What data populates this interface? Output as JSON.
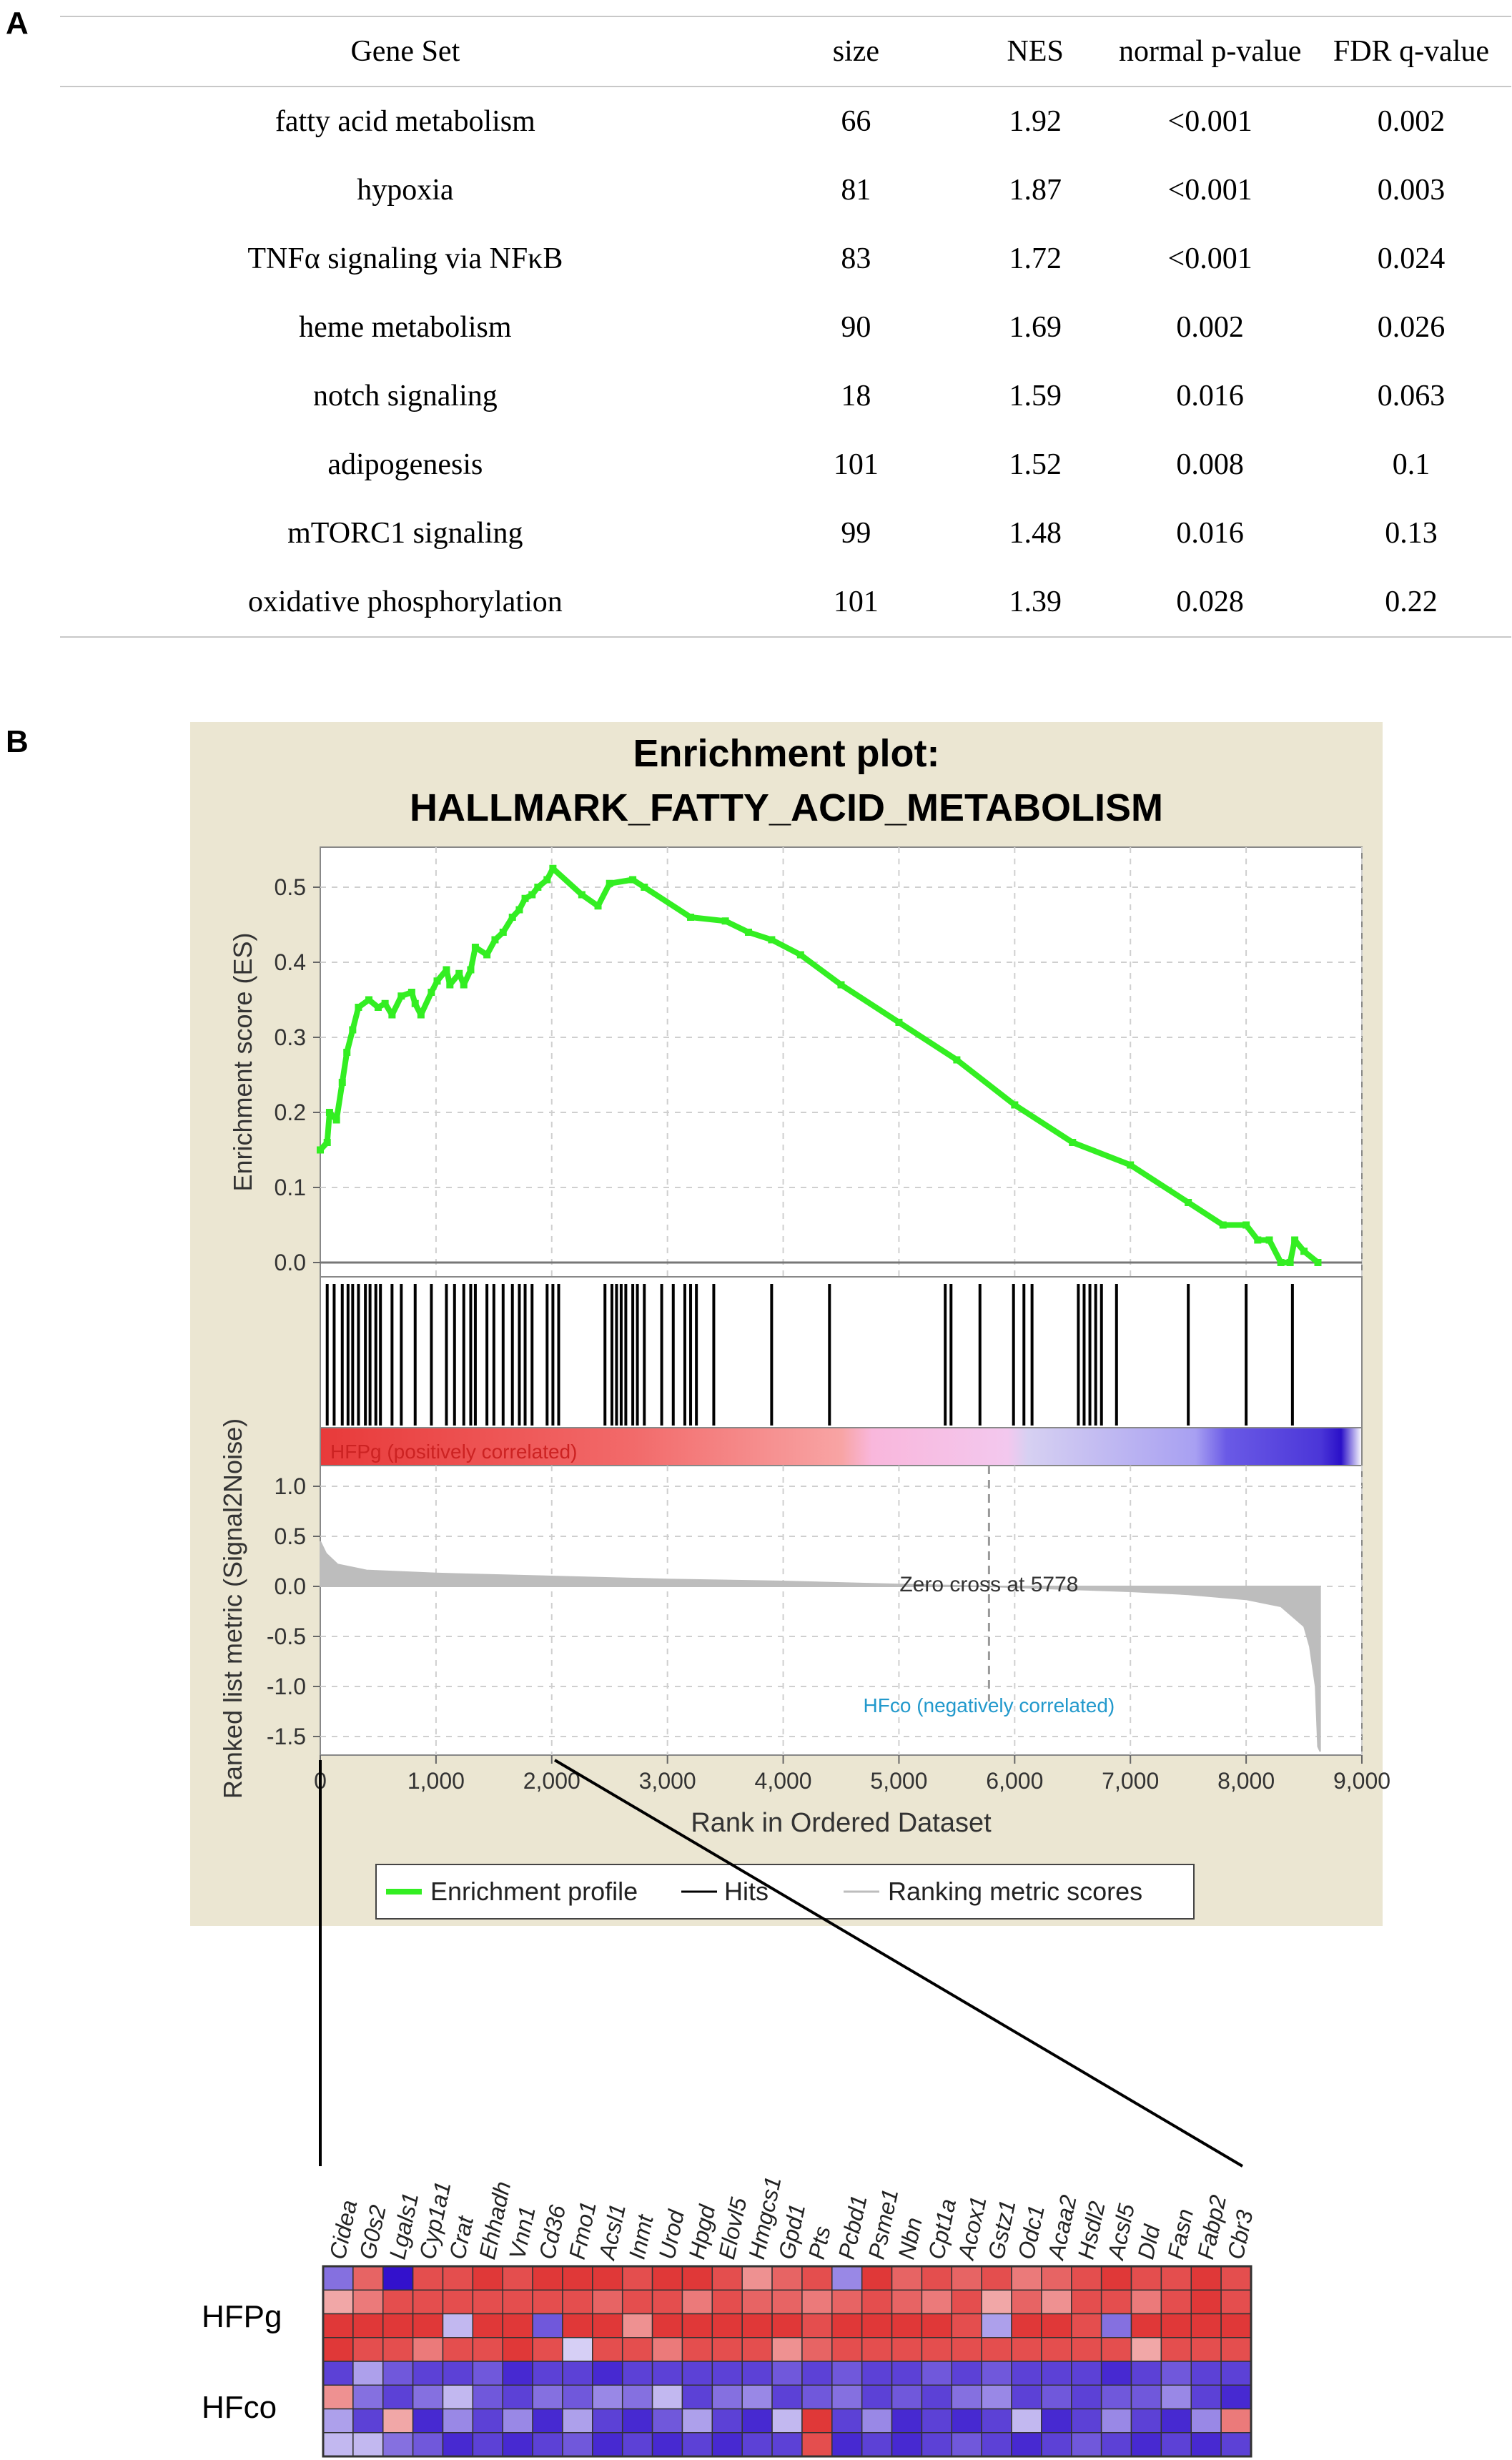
{
  "panel_a": {
    "letter": "A",
    "columns": [
      "Gene Set",
      "size",
      "NES",
      "normal p-value",
      "FDR q-value"
    ],
    "rows": [
      [
        "fatty acid metabolism",
        "66",
        "1.92",
        "<0.001",
        "0.002"
      ],
      [
        "hypoxia",
        "81",
        "1.87",
        "<0.001",
        "0.003"
      ],
      [
        "TNFα signaling via NFκB",
        "83",
        "1.72",
        "<0.001",
        "0.024"
      ],
      [
        "heme metabolism",
        "90",
        "1.69",
        "0.002",
        "0.026"
      ],
      [
        "notch signaling",
        "18",
        "1.59",
        "0.016",
        "0.063"
      ],
      [
        "adipogenesis",
        "101",
        "1.52",
        "0.008",
        "0.1"
      ],
      [
        "mTORC1 signaling",
        "99",
        "1.48",
        "0.016",
        "0.13"
      ],
      [
        "oxidative phosphorylation",
        "101",
        "1.39",
        "0.028",
        "0.22"
      ]
    ]
  },
  "panel_b": {
    "letter": "B",
    "title_line1": "Enrichment plot:",
    "title_line2": "HALLMARK_FATTY_ACID_METABOLISM",
    "colors": {
      "background": "#ebe6d2",
      "es_line": "#33ee22",
      "hits": "#000000",
      "ranking": "#bdbdbd",
      "pos_label": "#cc2222",
      "neg_label": "#2299cc",
      "heat_red": "#dd2222",
      "heat_blue": "#3311cc"
    },
    "pos_label": "HFPg (positively correlated)",
    "neg_label": "HFco (negatively correlated)",
    "zero_cross_label": "Zero cross at 5778",
    "zero_cross_rank": 5778,
    "legend": [
      "Enrichment profile",
      "Hits",
      "Ranking metric scores"
    ]
  },
  "chart_data": [
    {
      "type": "line",
      "title": "Enrichment plot: HALLMARK_FATTY_ACID_METABOLISM",
      "xlabel": "Rank in Ordered Dataset",
      "ylabel": "Enrichment score (ES)",
      "xlim": [
        0,
        9000
      ],
      "ylim": [
        0,
        0.56
      ],
      "xticks": [
        "0",
        "1,000",
        "2,000",
        "3,000",
        "4,000",
        "5,000",
        "6,000",
        "7,000",
        "8,000",
        "9,000"
      ],
      "yticks": [
        "0.0",
        "0.1",
        "0.2",
        "0.3",
        "0.4",
        "0.5"
      ],
      "grid": true,
      "series": [
        {
          "name": "Enrichment profile",
          "x": [
            0,
            60,
            80,
            140,
            190,
            230,
            280,
            330,
            420,
            500,
            560,
            620,
            700,
            790,
            820,
            870,
            960,
            1010,
            1090,
            1120,
            1200,
            1240,
            1300,
            1340,
            1440,
            1510,
            1580,
            1660,
            1720,
            1770,
            1830,
            1880,
            1960,
            2010,
            2260,
            2400,
            2500,
            2700,
            2800,
            3200,
            3500,
            3700,
            3900,
            4150,
            4500,
            5000,
            5500,
            6000,
            6500,
            7000,
            7500,
            7800,
            8000,
            8100,
            8200,
            8300,
            8380,
            8420,
            8500,
            8620
          ],
          "y": [
            0.15,
            0.16,
            0.2,
            0.19,
            0.24,
            0.28,
            0.31,
            0.34,
            0.35,
            0.34,
            0.345,
            0.33,
            0.355,
            0.36,
            0.345,
            0.33,
            0.36,
            0.375,
            0.39,
            0.37,
            0.385,
            0.37,
            0.39,
            0.42,
            0.41,
            0.43,
            0.44,
            0.46,
            0.47,
            0.485,
            0.49,
            0.5,
            0.51,
            0.525,
            0.49,
            0.475,
            0.505,
            0.51,
            0.5,
            0.46,
            0.455,
            0.44,
            0.43,
            0.41,
            0.37,
            0.32,
            0.27,
            0.21,
            0.16,
            0.13,
            0.08,
            0.05,
            0.05,
            0.03,
            0.03,
            0.0,
            0.0,
            0.03,
            0.015,
            0.0
          ]
        }
      ]
    },
    {
      "type": "bar",
      "name": "Hits",
      "x": [
        60,
        120,
        190,
        240,
        280,
        330,
        390,
        430,
        480,
        520,
        620,
        700,
        820,
        960,
        1090,
        1160,
        1240,
        1300,
        1340,
        1440,
        1500,
        1580,
        1660,
        1720,
        1770,
        1830,
        1960,
        2010,
        2060,
        2460,
        2520,
        2560,
        2600,
        2640,
        2700,
        2740,
        2800,
        2950,
        3050,
        3150,
        3200,
        3250,
        3400,
        3900,
        4400,
        5400,
        5450,
        5700,
        5990,
        6080,
        6150,
        6550,
        6600,
        6650,
        6700,
        6750,
        6880,
        7500,
        8000,
        8400
      ]
    },
    {
      "type": "area",
      "xlabel": "Rank in Ordered Dataset",
      "ylabel": "Ranked list metric (Signal2Noise)",
      "xlim": [
        0,
        9000
      ],
      "ylim": [
        -1.75,
        1.0
      ],
      "yticks": [
        "1.0",
        "0.5",
        "0.0",
        "-0.5",
        "-1.0",
        "-1.5"
      ],
      "grid": true,
      "series": [
        {
          "name": "Ranking metric scores",
          "x": [
            0,
            50,
            150,
            400,
            1000,
            2000,
            3000,
            4000,
            5000,
            5778,
            6500,
            7000,
            7500,
            8000,
            8300,
            8500,
            8550,
            8600,
            8620,
            8640
          ],
          "y": [
            0.45,
            0.33,
            0.22,
            0.16,
            0.13,
            0.1,
            0.07,
            0.05,
            0.02,
            0.0,
            -0.03,
            -0.05,
            -0.08,
            -0.13,
            -0.2,
            -0.4,
            -0.6,
            -1.0,
            -1.6,
            -1.65
          ]
        }
      ]
    },
    {
      "type": "heatmap",
      "groups": [
        "HFPg",
        "HFco"
      ],
      "genes": [
        "Cidea",
        "G0s2",
        "Lgals1",
        "Cyp1a1",
        "Crat",
        "Ehhadh",
        "Vnn1",
        "Cd36",
        "Fmo1",
        "Acsl1",
        "Inmt",
        "Urod",
        "Hpgd",
        "Elovl5",
        "Hmgcs1",
        "Gpd1",
        "Pts",
        "Pcbd1",
        "Psme1",
        "Nbn",
        "Cpt1a",
        "Acox1",
        "Gstz1",
        "Odc1",
        "Acaa2",
        "Hsdl2",
        "Acsl5",
        "Dld",
        "Fasn",
        "Fabp2",
        "Cbr3"
      ],
      "scale": "-1 = blue, 0 = white, 1 = red",
      "values": [
        [
          -0.6,
          0.7,
          -1.0,
          0.8,
          0.8,
          0.9,
          0.8,
          0.9,
          0.9,
          0.9,
          0.8,
          0.9,
          0.9,
          0.8,
          0.5,
          0.7,
          0.8,
          -0.5,
          0.9,
          0.7,
          0.8,
          0.7,
          0.8,
          0.6,
          0.7,
          0.8,
          0.9,
          0.8,
          0.8,
          0.9,
          0.8
        ],
        [
          0.4,
          0.6,
          0.8,
          0.8,
          0.8,
          0.8,
          0.8,
          0.8,
          0.8,
          0.7,
          0.8,
          0.8,
          0.6,
          0.8,
          0.7,
          0.7,
          0.6,
          0.7,
          0.8,
          0.7,
          0.6,
          0.8,
          0.4,
          0.7,
          0.5,
          0.8,
          0.8,
          0.6,
          0.8,
          0.9,
          0.8
        ],
        [
          0.9,
          0.9,
          0.9,
          0.9,
          -0.3,
          0.9,
          0.9,
          -0.7,
          0.9,
          0.9,
          0.5,
          0.9,
          0.9,
          0.9,
          0.9,
          0.9,
          0.8,
          0.9,
          0.9,
          0.9,
          0.9,
          0.8,
          -0.4,
          0.9,
          0.9,
          0.8,
          -0.6,
          0.9,
          0.9,
          0.9,
          0.9
        ],
        [
          0.9,
          0.8,
          0.8,
          0.6,
          0.8,
          0.8,
          0.9,
          0.8,
          -0.2,
          0.8,
          0.8,
          0.6,
          0.8,
          0.8,
          0.8,
          0.5,
          0.7,
          0.8,
          0.8,
          0.8,
          0.8,
          0.8,
          0.8,
          0.8,
          0.8,
          0.8,
          0.8,
          0.4,
          0.8,
          0.8,
          0.8
        ],
        [
          -0.8,
          -0.4,
          -0.7,
          -0.8,
          -0.8,
          -0.7,
          -0.9,
          -0.8,
          -0.8,
          -0.9,
          -0.8,
          -0.8,
          -0.8,
          -0.8,
          -0.8,
          -0.7,
          -0.8,
          -0.7,
          -0.8,
          -0.8,
          -0.7,
          -0.8,
          -0.7,
          -0.8,
          -0.8,
          -0.8,
          -0.9,
          -0.8,
          -0.7,
          -0.8,
          -0.8
        ],
        [
          0.5,
          -0.6,
          -0.8,
          -0.6,
          -0.3,
          -0.7,
          -0.8,
          -0.6,
          -0.7,
          -0.5,
          -0.6,
          -0.3,
          -0.8,
          -0.6,
          -0.5,
          -0.8,
          -0.7,
          -0.6,
          -0.8,
          -0.7,
          -0.8,
          -0.6,
          -0.5,
          -0.8,
          -0.7,
          -0.8,
          -0.7,
          -0.7,
          -0.5,
          -0.8,
          -0.9
        ],
        [
          -0.4,
          -0.8,
          0.4,
          -0.9,
          -0.5,
          -0.8,
          -0.5,
          -0.9,
          -0.4,
          -0.8,
          -0.9,
          -0.7,
          -0.4,
          -0.8,
          -0.9,
          -0.3,
          0.9,
          -0.8,
          -0.5,
          -0.9,
          -0.8,
          -0.9,
          -0.8,
          -0.3,
          -0.9,
          -0.8,
          -0.5,
          -0.8,
          -0.9,
          -0.5,
          0.6
        ],
        [
          -0.3,
          -0.3,
          -0.6,
          -0.7,
          -0.9,
          -0.8,
          -0.9,
          -0.8,
          -0.7,
          -0.9,
          -0.8,
          -0.9,
          -0.8,
          -0.9,
          -0.8,
          -0.8,
          0.8,
          -0.9,
          -0.8,
          -0.9,
          -0.8,
          -0.7,
          -0.8,
          -0.9,
          -0.8,
          -0.7,
          -0.8,
          -0.9,
          -0.8,
          -0.9,
          -0.8
        ]
      ]
    }
  ]
}
